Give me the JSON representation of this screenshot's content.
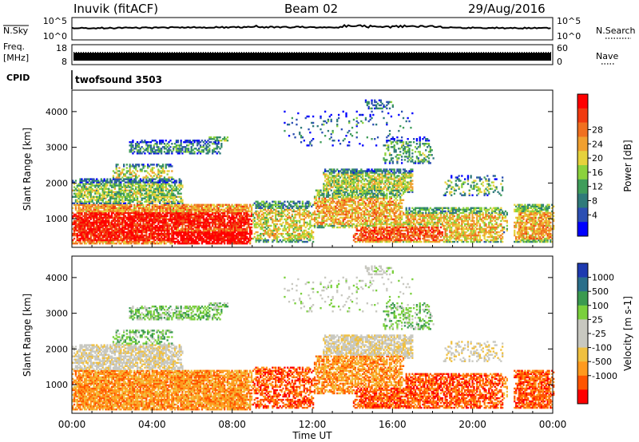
{
  "header": {
    "station": "Inuvik (fitACF)",
    "beam": "Beam 02",
    "date": "29/Aug/2016"
  },
  "strips": {
    "nsky_label": "N.Sky",
    "nsky_ticks": [
      "10^5",
      "10^0"
    ],
    "nsearch_label": "N.Search",
    "nsearch_ticks": [
      "10^5",
      "10^0"
    ],
    "freq_label_1": "Freq.",
    "freq_label_2": "[MHz]",
    "freq_ticks": [
      "18",
      "8"
    ],
    "nave_label": "Nave",
    "nave_ticks": [
      "60",
      "0"
    ],
    "cpid_label": "CPID",
    "cpid_value": "twofsound 3503"
  },
  "colors": {
    "power": [
      "#0000ff",
      "#2c4fb3",
      "#2f7a7a",
      "#3f9d5a",
      "#8bd23c",
      "#e6d23c",
      "#f0a030",
      "#f07020",
      "#f03a10",
      "#ff0000"
    ],
    "velocity": [
      "#ff0000",
      "#ff5500",
      "#ff9a1e",
      "#f0c040",
      "#c8c8c0",
      "#c8c8c0",
      "#7ad03c",
      "#3a9a50",
      "#2a6e8a",
      "#1e3ab0"
    ]
  },
  "chart_data": [
    {
      "type": "heatmap",
      "name": "power",
      "ylabel": "Slant Range [km]",
      "yticks": [
        1000,
        2000,
        3000,
        4000
      ],
      "ylim": [
        200,
        4600
      ],
      "colorbar_label": "Power [dB]",
      "colorbar_ticks": [
        "28",
        "24",
        "20",
        "16",
        "12",
        "8",
        "4"
      ]
    },
    {
      "type": "heatmap",
      "name": "velocity",
      "ylabel": "Slant Range [km]",
      "yticks": [
        1000,
        2000,
        3000,
        4000
      ],
      "ylim": [
        200,
        4600
      ],
      "colorbar_label": "Velocity [m s-1]",
      "colorbar_ticks": [
        "1000",
        "500",
        "100",
        "25",
        "-25",
        "-100",
        "-500",
        "-1000"
      ],
      "xlabel": "Time UT",
      "xticks": [
        "00:00",
        "04:00",
        "08:00",
        "12:00",
        "16:00",
        "20:00",
        "00:00"
      ],
      "xlim": [
        0,
        24
      ]
    }
  ]
}
